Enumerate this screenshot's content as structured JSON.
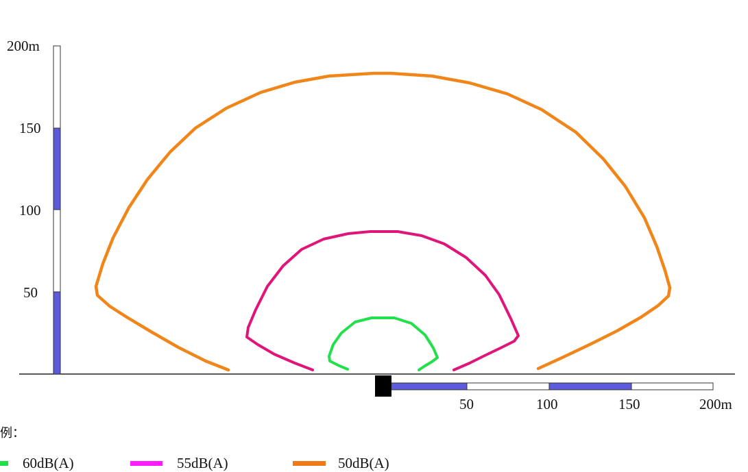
{
  "scale_bars": {
    "vertical": {
      "labels": [
        "50",
        "100",
        "150",
        "200m"
      ],
      "fill_color": "#5b5bdc"
    },
    "horizontal": {
      "labels": [
        "50",
        "100",
        "150",
        "200m"
      ],
      "fill_color": "#5b5bdc"
    }
  },
  "source_marker": {
    "color": "#000000",
    "icon": "noise-source-square"
  },
  "contours": [
    {
      "label": "60dB(A)",
      "color": "#22e04a"
    },
    {
      "label": "55dB(A)",
      "color": "#e0157a"
    },
    {
      "label": "50dB(A)",
      "color": "#f0861a"
    }
  ],
  "legend": {
    "title": "例：",
    "items": [
      {
        "label": "60dB(A)",
        "color": "#22e04a"
      },
      {
        "label": "55dB(A)",
        "color": "#ff1aff"
      },
      {
        "label": "50dB(A)",
        "color": "#f07a1a"
      }
    ]
  }
}
